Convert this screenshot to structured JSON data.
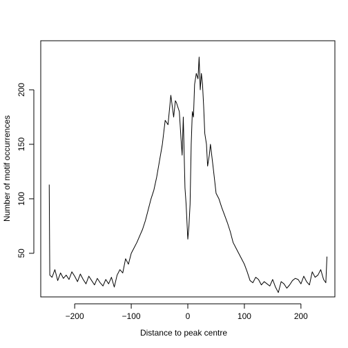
{
  "chart_data": {
    "type": "line",
    "title": "",
    "xlabel": "Distance to peak centre",
    "ylabel": "Number of motif occurrences",
    "xlim": [
      -260,
      260
    ],
    "ylim": [
      10,
      245
    ],
    "x_ticks": [
      -200,
      -100,
      0,
      100,
      200
    ],
    "x_tick_labels": [
      "−200",
      "−100",
      "0",
      "100",
      "200"
    ],
    "y_ticks": [
      50,
      100,
      150,
      200
    ],
    "y_tick_labels": [
      "50",
      "100",
      "150",
      "200"
    ],
    "grid": false,
    "legend": "none",
    "line_color": "#000000",
    "series": [
      {
        "x": [
          -245,
          -244,
          -240,
          -235,
          -230,
          -225,
          -220,
          -215,
          -210,
          -205,
          -200,
          -195,
          -190,
          -185,
          -180,
          -175,
          -170,
          -165,
          -160,
          -155,
          -150,
          -145,
          -140,
          -135,
          -130,
          -125,
          -120,
          -115,
          -110,
          -105,
          -100,
          -95,
          -90,
          -85,
          -80,
          -75,
          -70,
          -65,
          -60,
          -55,
          -50,
          -45,
          -40,
          -35,
          -30,
          -25,
          -22,
          -20,
          -15,
          -12,
          -10,
          -8,
          -5,
          -3,
          0,
          2,
          4,
          6,
          8,
          10,
          12,
          15,
          18,
          20,
          22,
          24,
          26,
          28,
          30,
          33,
          35,
          38,
          40,
          45,
          50,
          55,
          60,
          65,
          70,
          75,
          80,
          85,
          90,
          95,
          100,
          105,
          110,
          115,
          120,
          125,
          130,
          135,
          140,
          145,
          150,
          155,
          160,
          165,
          170,
          175,
          180,
          185,
          190,
          195,
          200,
          205,
          210,
          215,
          220,
          225,
          230,
          235,
          240,
          244,
          246
        ],
        "y": [
          113,
          30,
          28,
          35,
          25,
          32,
          27,
          30,
          26,
          33,
          29,
          24,
          31,
          26,
          22,
          29,
          25,
          21,
          27,
          23,
          20,
          26,
          22,
          28,
          19,
          30,
          35,
          32,
          45,
          40,
          50,
          55,
          60,
          66,
          72,
          80,
          90,
          100,
          108,
          120,
          135,
          150,
          172,
          168,
          195,
          175,
          190,
          188,
          180,
          155,
          140,
          175,
          110,
          95,
          63,
          75,
          95,
          150,
          180,
          175,
          205,
          215,
          210,
          230,
          200,
          215,
          205,
          185,
          160,
          150,
          130,
          140,
          150,
          128,
          105,
          100,
          92,
          85,
          78,
          70,
          60,
          55,
          50,
          45,
          40,
          33,
          25,
          23,
          28,
          26,
          21,
          24,
          22,
          20,
          26,
          19,
          14,
          24,
          22,
          18,
          21,
          25,
          27,
          26,
          22,
          29,
          24,
          21,
          33,
          28,
          30,
          35,
          26,
          23,
          47
        ]
      }
    ]
  }
}
